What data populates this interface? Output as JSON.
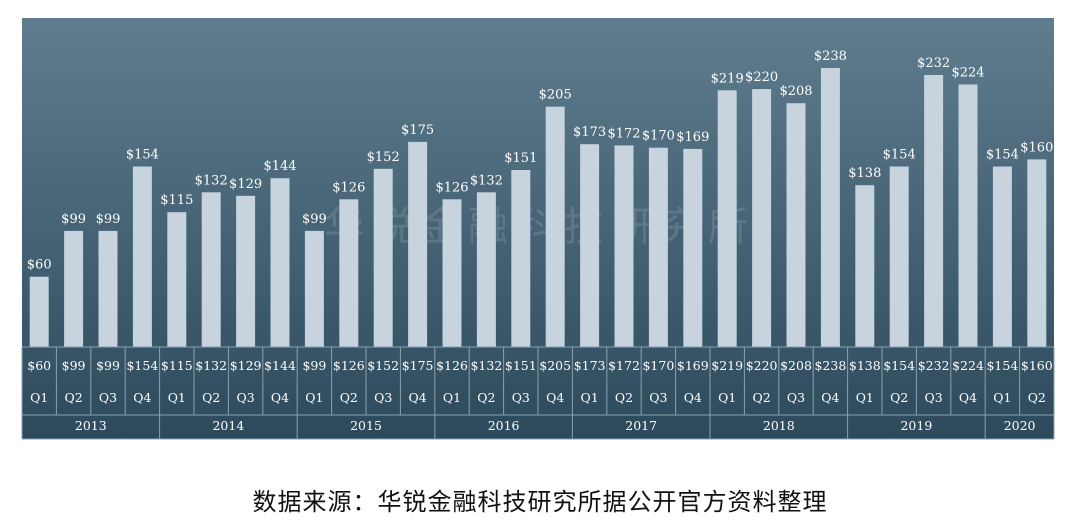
{
  "chart_data": {
    "type": "bar",
    "title": "",
    "xlabel": "",
    "ylabel": "",
    "ylim": [
      0,
      250
    ],
    "grid": false,
    "legend": "none",
    "value_prefix": "$",
    "years": [
      {
        "label": "2013",
        "quarters": 4
      },
      {
        "label": "2014",
        "quarters": 4
      },
      {
        "label": "2015",
        "quarters": 4
      },
      {
        "label": "2016",
        "quarters": 4
      },
      {
        "label": "2017",
        "quarters": 4
      },
      {
        "label": "2018",
        "quarters": 4
      },
      {
        "label": "2019",
        "quarters": 4
      },
      {
        "label": "2020",
        "quarters": 2
      }
    ],
    "categories": [
      "Q1",
      "Q2",
      "Q3",
      "Q4",
      "Q1",
      "Q2",
      "Q3",
      "Q4",
      "Q1",
      "Q2",
      "Q3",
      "Q4",
      "Q1",
      "Q2",
      "Q3",
      "Q4",
      "Q1",
      "Q2",
      "Q3",
      "Q4",
      "Q1",
      "Q2",
      "Q3",
      "Q4",
      "Q1",
      "Q2",
      "Q3",
      "Q4",
      "Q1",
      "Q2"
    ],
    "values": [
      60,
      99,
      99,
      154,
      115,
      132,
      129,
      144,
      99,
      126,
      152,
      175,
      126,
      132,
      151,
      205,
      173,
      172,
      170,
      169,
      219,
      220,
      208,
      238,
      138,
      154,
      232,
      224,
      154,
      160
    ],
    "watermark": "华锐金融科技研究所"
  },
  "colors": {
    "background_top": "#5f7d8f",
    "background_bottom": "#2c4a5c",
    "bar": "#c7d3dd",
    "label": "#ffffff",
    "table_line": "#8aa2b2"
  },
  "source_note": "数据来源：华锐金融科技研究所据公开官方资料整理"
}
